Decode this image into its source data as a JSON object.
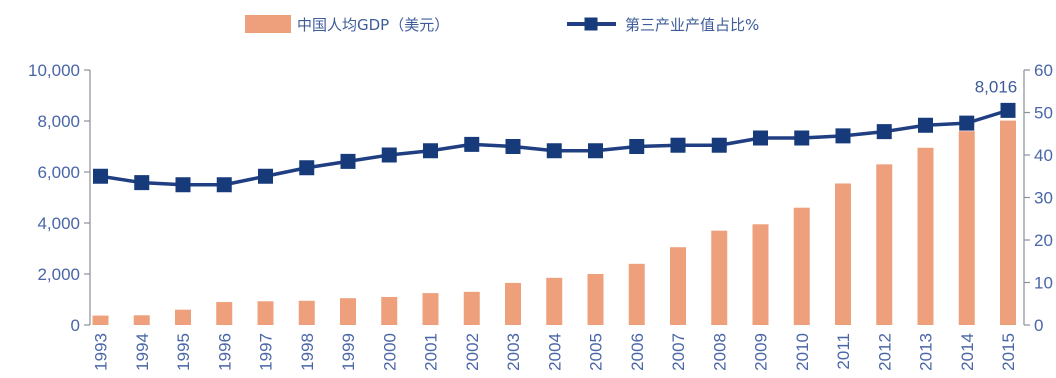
{
  "chart_data": {
    "type": "bar",
    "categories": [
      "1993",
      "1994",
      "1995",
      "1996",
      "1997",
      "1998",
      "1999",
      "2000",
      "2001",
      "2002",
      "2003",
      "2004",
      "2005",
      "2006",
      "2007",
      "2008",
      "2009",
      "2010",
      "2011",
      "2012",
      "2013",
      "2014",
      "2015"
    ],
    "series": [
      {
        "name": "中国人均GDP（美元）",
        "type": "bar",
        "axis": "left",
        "values": [
          370,
          380,
          600,
          900,
          930,
          950,
          1050,
          1100,
          1250,
          1300,
          1650,
          1850,
          2000,
          2400,
          3050,
          3700,
          3950,
          4600,
          5550,
          6300,
          6950,
          7600,
          8016
        ]
      },
      {
        "name": "第三产业产值占比%",
        "type": "line",
        "axis": "right",
        "values": [
          35,
          33.5,
          33,
          33,
          35,
          37,
          38.5,
          40,
          41,
          42.5,
          42,
          41,
          41,
          42,
          42.3,
          42.3,
          44,
          44,
          44.5,
          45.5,
          47,
          47.5,
          50.5
        ]
      }
    ],
    "y_left": {
      "lim": [
        0,
        10000
      ],
      "ticks": [
        "0",
        "2,000",
        "4,000",
        "6,000",
        "8,000",
        "10,000"
      ],
      "tick_values": [
        0,
        2000,
        4000,
        6000,
        8000,
        10000
      ]
    },
    "y_right": {
      "lim": [
        0,
        60
      ],
      "ticks": [
        "0",
        "10",
        "20",
        "30",
        "40",
        "50",
        "60"
      ],
      "tick_values": [
        0,
        10,
        20,
        30,
        40,
        50,
        60
      ]
    },
    "annotations": [
      {
        "text": "8,016",
        "category": "2015",
        "series": 0
      }
    ],
    "legend_position": "top-center",
    "grid": false,
    "colors": {
      "bar": "#ee9f7b",
      "line": "#1f3f82",
      "marker": "#173a7a",
      "axis": "#8a8f99",
      "text": "#4a66a7"
    }
  }
}
